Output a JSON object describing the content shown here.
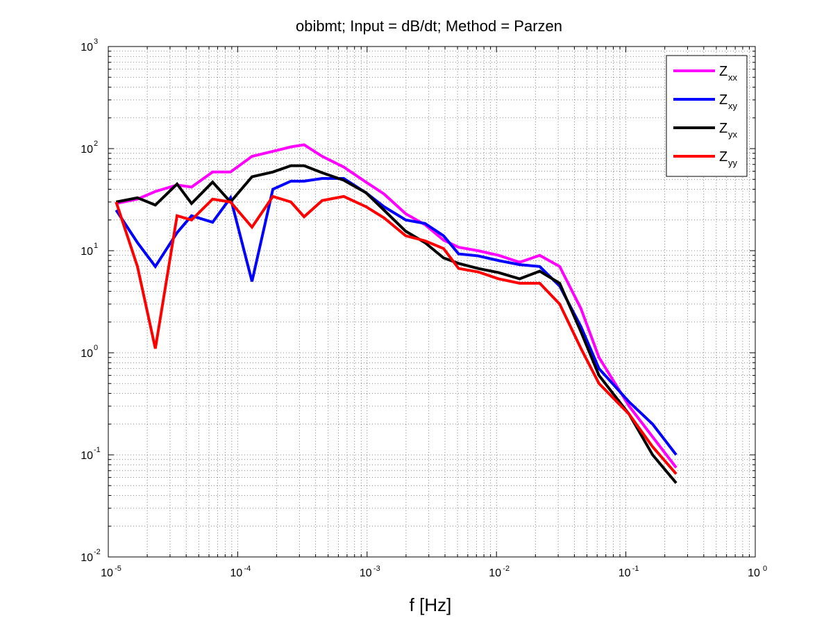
{
  "chart_data": {
    "type": "line",
    "title": "obibmt; Input = dB/dt; Method = Parzen",
    "xlabel": "f [Hz]",
    "ylabel": "",
    "xscale": "log",
    "yscale": "log",
    "xlim": [
      1e-05,
      1
    ],
    "ylim": [
      0.01,
      1000
    ],
    "grid": true,
    "legend_position": "top-right",
    "x_ticks": [
      {
        "base": "10",
        "exp": "-5"
      },
      {
        "base": "10",
        "exp": "-4"
      },
      {
        "base": "10",
        "exp": "-3"
      },
      {
        "base": "10",
        "exp": "-2"
      },
      {
        "base": "10",
        "exp": "-1"
      },
      {
        "base": "10",
        "exp": "0"
      }
    ],
    "y_ticks": [
      {
        "base": "10",
        "exp": "-2"
      },
      {
        "base": "10",
        "exp": "-1"
      },
      {
        "base": "10",
        "exp": "0"
      },
      {
        "base": "10",
        "exp": "1"
      },
      {
        "base": "10",
        "exp": "2"
      },
      {
        "base": "10",
        "exp": "3"
      }
    ],
    "series": [
      {
        "label_main": "Z",
        "label_sub": "xx",
        "color": "#ff00ff",
        "points": [
          [
            1.15e-05,
            29
          ],
          [
            1.68e-05,
            32
          ],
          [
            2.31e-05,
            38
          ],
          [
            3.4e-05,
            44
          ],
          [
            4.4e-05,
            42
          ],
          [
            6.4e-05,
            59
          ],
          [
            8.8e-05,
            59
          ],
          [
            0.000129,
            84
          ],
          [
            0.000187,
            94
          ],
          [
            0.000258,
            104
          ],
          [
            0.000326,
            109
          ],
          [
            0.00045,
            84
          ],
          [
            0.00066,
            66
          ],
          [
            0.00098,
            47
          ],
          [
            0.00135,
            36
          ],
          [
            0.00199,
            23
          ],
          [
            0.0028,
            18
          ],
          [
            0.0039,
            12.7
          ],
          [
            0.0051,
            10.8
          ],
          [
            0.0072,
            10
          ],
          [
            0.0104,
            9
          ],
          [
            0.0151,
            7.7
          ],
          [
            0.0216,
            9
          ],
          [
            0.0308,
            7
          ],
          [
            0.045,
            2.7
          ],
          [
            0.062,
            0.9
          ],
          [
            0.106,
            0.3
          ],
          [
            0.161,
            0.15
          ],
          [
            0.245,
            0.075
          ]
        ]
      },
      {
        "label_main": "Z",
        "label_sub": "xy",
        "color": "#0000ff",
        "points": [
          [
            1.15e-05,
            25
          ],
          [
            1.68e-05,
            12
          ],
          [
            2.31e-05,
            7
          ],
          [
            3.4e-05,
            15
          ],
          [
            4.4e-05,
            22
          ],
          [
            6.4e-05,
            19
          ],
          [
            8.8e-05,
            33
          ],
          [
            0.000129,
            5
          ],
          [
            0.000187,
            40
          ],
          [
            0.000258,
            48
          ],
          [
            0.000326,
            48
          ],
          [
            0.00045,
            51
          ],
          [
            0.00066,
            51
          ],
          [
            0.00098,
            37
          ],
          [
            0.00135,
            27
          ],
          [
            0.00199,
            20
          ],
          [
            0.0028,
            18.5
          ],
          [
            0.0039,
            14
          ],
          [
            0.0051,
            9.3
          ],
          [
            0.0072,
            8.9
          ],
          [
            0.0104,
            8
          ],
          [
            0.0151,
            7.3
          ],
          [
            0.0216,
            7
          ],
          [
            0.0308,
            4.5
          ],
          [
            0.045,
            1.8
          ],
          [
            0.062,
            0.7
          ],
          [
            0.106,
            0.33
          ],
          [
            0.161,
            0.2
          ],
          [
            0.245,
            0.1
          ]
        ]
      },
      {
        "label_main": "Z",
        "label_sub": "yx",
        "color": "#000000",
        "points": [
          [
            1.15e-05,
            30
          ],
          [
            1.68e-05,
            33
          ],
          [
            2.31e-05,
            28
          ],
          [
            3.4e-05,
            45
          ],
          [
            4.4e-05,
            29
          ],
          [
            6.4e-05,
            47
          ],
          [
            8.8e-05,
            30
          ],
          [
            0.000129,
            53
          ],
          [
            0.000187,
            59
          ],
          [
            0.000258,
            68
          ],
          [
            0.000326,
            68
          ],
          [
            0.00045,
            58
          ],
          [
            0.00066,
            49
          ],
          [
            0.00098,
            37
          ],
          [
            0.00135,
            25
          ],
          [
            0.00199,
            15.5
          ],
          [
            0.0028,
            12
          ],
          [
            0.0039,
            8.5
          ],
          [
            0.0051,
            7.5
          ],
          [
            0.0072,
            6.7
          ],
          [
            0.0104,
            6.1
          ],
          [
            0.0151,
            5.3
          ],
          [
            0.0216,
            6.3
          ],
          [
            0.0308,
            4.8
          ],
          [
            0.045,
            1.6
          ],
          [
            0.062,
            0.6
          ],
          [
            0.106,
            0.25
          ],
          [
            0.161,
            0.1
          ],
          [
            0.245,
            0.053
          ]
        ]
      },
      {
        "label_main": "Z",
        "label_sub": "yy",
        "color": "#ff0000",
        "points": [
          [
            1.15e-05,
            30
          ],
          [
            1.68e-05,
            7
          ],
          [
            2.31e-05,
            1.1
          ],
          [
            3.4e-05,
            22
          ],
          [
            4.4e-05,
            20
          ],
          [
            6.4e-05,
            32
          ],
          [
            8.8e-05,
            30
          ],
          [
            0.000129,
            17
          ],
          [
            0.000187,
            34
          ],
          [
            0.000258,
            30
          ],
          [
            0.000326,
            21.5
          ],
          [
            0.00045,
            31
          ],
          [
            0.00066,
            34
          ],
          [
            0.00098,
            27
          ],
          [
            0.00135,
            21
          ],
          [
            0.00199,
            14
          ],
          [
            0.0028,
            12.5
          ],
          [
            0.0039,
            10.5
          ],
          [
            0.0051,
            6.7
          ],
          [
            0.0072,
            6.2
          ],
          [
            0.0104,
            5.3
          ],
          [
            0.0151,
            4.8
          ],
          [
            0.0216,
            4.8
          ],
          [
            0.0308,
            3
          ],
          [
            0.045,
            1.1
          ],
          [
            0.062,
            0.5
          ],
          [
            0.106,
            0.25
          ],
          [
            0.161,
            0.12
          ],
          [
            0.245,
            0.065
          ]
        ]
      }
    ]
  }
}
